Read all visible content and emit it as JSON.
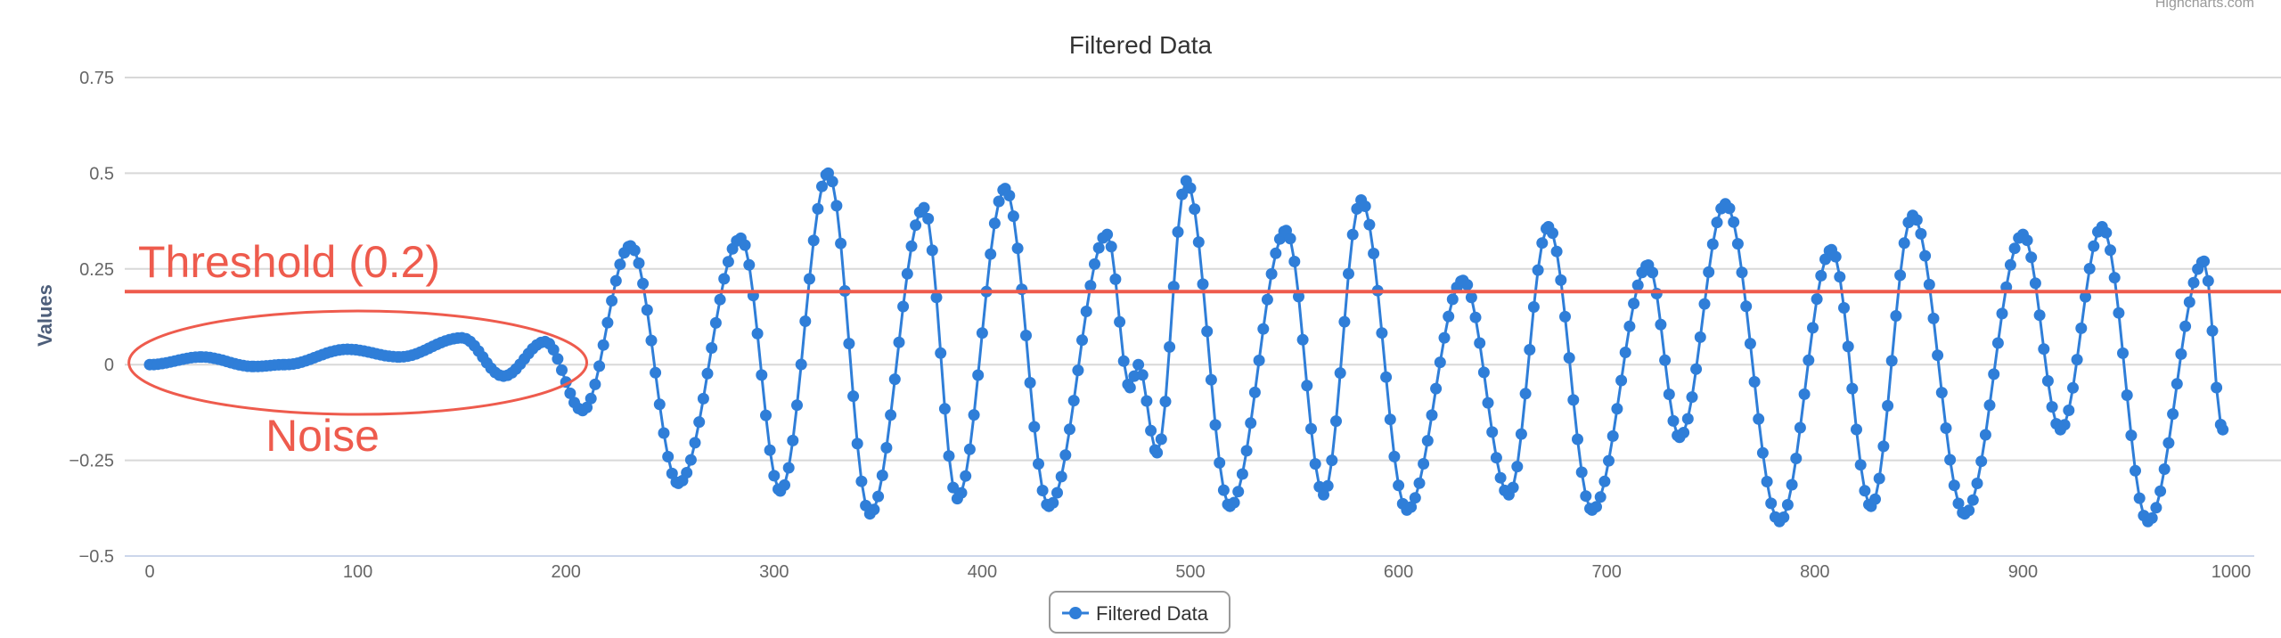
{
  "chart_data": {
    "type": "line",
    "title": "Filtered Data",
    "credits": "Highcharts.com",
    "ylabel": "Values",
    "xlabel": "",
    "xlim": [
      0,
      1000
    ],
    "ylim": [
      -0.5,
      0.75
    ],
    "xticks": [
      0,
      100,
      200,
      300,
      400,
      500,
      600,
      700,
      800,
      900,
      1000
    ],
    "yticks": [
      {
        "value": -0.5,
        "label": "−0.5"
      },
      {
        "value": -0.25,
        "label": "−0.25"
      },
      {
        "value": 0,
        "label": "0"
      },
      {
        "value": 0.25,
        "label": "0.25"
      },
      {
        "value": 0.5,
        "label": "0.5"
      },
      {
        "value": 0.75,
        "label": "0.75"
      }
    ],
    "grid": true,
    "legend_position": "bottom-center",
    "series": [
      {
        "name": "Filtered Data",
        "color": "#2f7ed8",
        "marker": "circle",
        "keypoints": [
          [
            0,
            0.0
          ],
          [
            25,
            0.02
          ],
          [
            50,
            -0.005
          ],
          [
            65,
            0.0
          ],
          [
            95,
            0.04
          ],
          [
            120,
            0.02
          ],
          [
            150,
            0.07
          ],
          [
            170,
            -0.03
          ],
          [
            190,
            0.06
          ],
          [
            208,
            -0.12
          ],
          [
            231,
            0.31
          ],
          [
            254,
            -0.31
          ],
          [
            284,
            0.33
          ],
          [
            303,
            -0.33
          ],
          [
            326,
            0.5
          ],
          [
            346,
            -0.39
          ],
          [
            372,
            0.41
          ],
          [
            388,
            -0.35
          ],
          [
            411,
            0.46
          ],
          [
            432,
            -0.37
          ],
          [
            460,
            0.34
          ],
          [
            471,
            -0.06
          ],
          [
            475,
            0.0
          ],
          [
            484,
            -0.23
          ],
          [
            498,
            0.48
          ],
          [
            519,
            -0.37
          ],
          [
            546,
            0.35
          ],
          [
            564,
            -0.34
          ],
          [
            582,
            0.43
          ],
          [
            604,
            -0.38
          ],
          [
            631,
            0.22
          ],
          [
            653,
            -0.34
          ],
          [
            672,
            0.36
          ],
          [
            693,
            -0.38
          ],
          [
            720,
            0.26
          ],
          [
            735,
            -0.19
          ],
          [
            757,
            0.42
          ],
          [
            783,
            -0.41
          ],
          [
            808,
            0.3
          ],
          [
            827,
            -0.37
          ],
          [
            847,
            0.39
          ],
          [
            872,
            -0.39
          ],
          [
            900,
            0.34
          ],
          [
            918,
            -0.17
          ],
          [
            938,
            0.36
          ],
          [
            960,
            -0.41
          ],
          [
            987,
            0.27
          ],
          [
            996,
            -0.17
          ]
        ]
      }
    ],
    "annotations": {
      "threshold": {
        "value": 0.2,
        "label": "Threshold (0.2)",
        "color": "#ee5b4d"
      },
      "noise": {
        "label": "Noise",
        "x_from": -10,
        "x_to": 210,
        "y_from": -0.13,
        "y_to": 0.14,
        "color": "#ee5b4d"
      }
    }
  }
}
